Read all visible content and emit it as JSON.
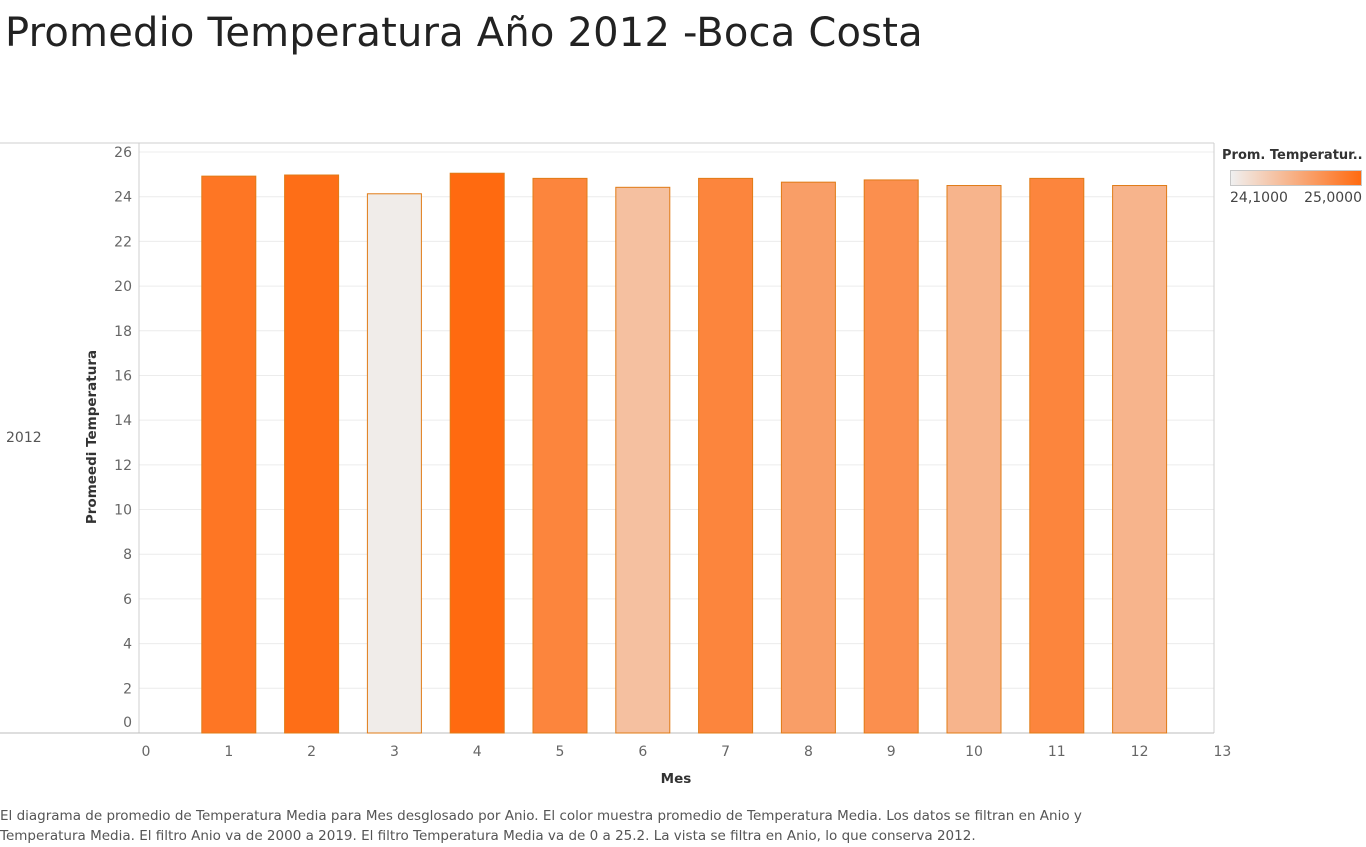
{
  "header": {
    "title": "Promedio Temperatura Año 2012 -Boca Costa"
  },
  "row_label": "2012",
  "caption": {
    "line1": "El diagrama de promedio de Temperatura Media para Mes desglosado por Anio.  El color muestra promedio de Temperatura Media. Los datos se filtran en Anio y",
    "line2": "Temperatura Media. El filtro Anio va de 2000 a 2019. El filtro Temperatura Media va de 0 a 25.2. La vista se filtra en Anio, lo que conserva 2012."
  },
  "legend": {
    "title": "Prom. Temperatur..",
    "min_label": "24,1000",
    "max_label": "25,0000",
    "min_color": "#f0f0f0",
    "max_color": "#ff6a10"
  },
  "chart_data": {
    "type": "bar",
    "xlabel": "Mes",
    "ylabel": "Promeedi Temperatura",
    "xlim": [
      0,
      13
    ],
    "ylim": [
      0,
      26
    ],
    "x_ticks": [
      0,
      1,
      2,
      3,
      4,
      5,
      6,
      7,
      8,
      9,
      10,
      11,
      12,
      13
    ],
    "y_ticks": [
      0,
      2,
      4,
      6,
      8,
      10,
      12,
      14,
      16,
      18,
      20,
      22,
      24,
      26
    ],
    "x": [
      1,
      2,
      3,
      4,
      5,
      6,
      7,
      8,
      9,
      10,
      11,
      12
    ],
    "values": [
      24.92,
      24.97,
      24.13,
      25.05,
      24.82,
      24.42,
      24.82,
      24.65,
      24.75,
      24.5,
      24.82,
      24.5
    ],
    "color_range": [
      24.1,
      25.0
    ],
    "colors": {
      "bar_border": "#e07b16",
      "grid": "#ececec",
      "axis": "#cfcfcf"
    }
  }
}
